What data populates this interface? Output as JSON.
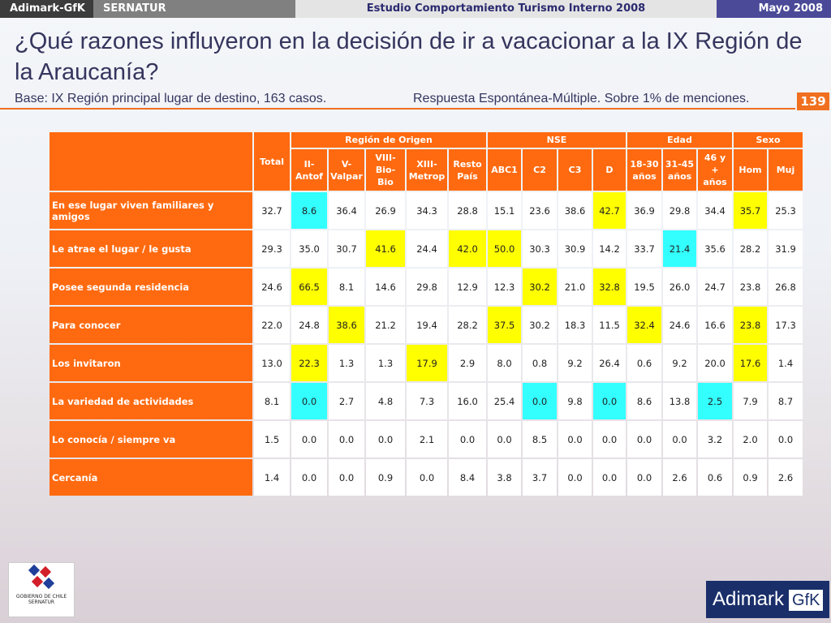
{
  "header": {
    "brand": "Adimark-GfK",
    "client": "SERNATUR",
    "study": "Estudio Comportamiento Turismo Interno 2008",
    "date": "Mayo 2008"
  },
  "title": "¿Qué razones influyeron en la decisión de ir a vacacionar a la IX Región de la Araucanía?",
  "base": "Base: IX Región principal lugar de destino, 163 casos.",
  "note": "Respuesta Espontánea-Múltiple. Sobre 1% de menciones.",
  "page_number": "139",
  "table": {
    "total_header": "Total",
    "groups": [
      {
        "name": "Región de Origen",
        "columns": [
          "II-\nAntof",
          "V-\nValpar",
          "VIII-\nBio-\nBio",
          "XIII-\nMetrop",
          "Resto\nPaís"
        ]
      },
      {
        "name": "NSE",
        "columns": [
          "ABC1",
          "C2",
          "C3",
          "D"
        ]
      },
      {
        "name": "Edad",
        "columns": [
          "18-30\naños",
          "31-45\naños",
          "46 y\n+\naños"
        ]
      },
      {
        "name": "Sexo",
        "columns": [
          "Hom",
          "Muj"
        ]
      }
    ],
    "rows": [
      {
        "label": "En ese lugar viven familiares y amigos",
        "cells": [
          "32.7",
          "8.6",
          "36.4",
          "26.9",
          "34.3",
          "28.8",
          "15.1",
          "23.6",
          "38.6",
          "42.7",
          "36.9",
          "29.8",
          "34.4",
          "35.7",
          "25.3"
        ],
        "highlight": [
          null,
          "#33ffff",
          null,
          null,
          null,
          null,
          null,
          null,
          null,
          "#ffff00",
          null,
          null,
          null,
          "#ffff00",
          null
        ]
      },
      {
        "label": "Le atrae el lugar / le gusta",
        "cells": [
          "29.3",
          "35.0",
          "30.7",
          "41.6",
          "24.4",
          "42.0",
          "50.0",
          "30.3",
          "30.9",
          "14.2",
          "33.7",
          "21.4",
          "35.6",
          "28.2",
          "31.9"
        ],
        "highlight": [
          null,
          null,
          null,
          "#ffff00",
          null,
          "#ffff00",
          "#ffff00",
          null,
          null,
          null,
          null,
          "#33ffff",
          null,
          null,
          null
        ]
      },
      {
        "label": "Posee segunda residencia",
        "cells": [
          "24.6",
          "66.5",
          "8.1",
          "14.6",
          "29.8",
          "12.9",
          "12.3",
          "30.2",
          "21.0",
          "32.8",
          "19.5",
          "26.0",
          "24.7",
          "23.8",
          "26.8"
        ],
        "highlight": [
          null,
          "#ffff00",
          null,
          null,
          null,
          null,
          null,
          "#ffff00",
          null,
          "#ffff00",
          null,
          null,
          null,
          null,
          null
        ]
      },
      {
        "label": "Para conocer",
        "cells": [
          "22.0",
          "24.8",
          "38.6",
          "21.2",
          "19.4",
          "28.2",
          "37.5",
          "30.2",
          "18.3",
          "11.5",
          "32.4",
          "24.6",
          "16.6",
          "23.8",
          "17.3"
        ],
        "highlight": [
          null,
          null,
          "#ffff00",
          null,
          null,
          null,
          "#ffff00",
          null,
          null,
          null,
          "#ffff00",
          null,
          null,
          "#ffff00",
          null
        ]
      },
      {
        "label": "Los invitaron",
        "cells": [
          "13.0",
          "22.3",
          "1.3",
          "1.3",
          "17.9",
          "2.9",
          "8.0",
          "0.8",
          "9.2",
          "26.4",
          "0.6",
          "9.2",
          "20.0",
          "17.6",
          "1.4"
        ],
        "highlight": [
          null,
          "#ffff00",
          null,
          null,
          "#ffff00",
          null,
          null,
          null,
          null,
          null,
          null,
          null,
          null,
          "#ffff00",
          null
        ]
      },
      {
        "label": "La variedad de actividades",
        "cells": [
          "8.1",
          "0.0",
          "2.7",
          "4.8",
          "7.3",
          "16.0",
          "25.4",
          "0.0",
          "9.8",
          "0.0",
          "8.6",
          "13.8",
          "2.5",
          "7.9",
          "8.7"
        ],
        "highlight": [
          null,
          "#33ffff",
          null,
          null,
          null,
          null,
          null,
          "#33ffff",
          null,
          "#33ffff",
          null,
          null,
          "#33ffff",
          null,
          null
        ]
      },
      {
        "label": "Lo conocía / siempre va",
        "cells": [
          "1.5",
          "0.0",
          "0.0",
          "0.0",
          "2.1",
          "0.0",
          "0.0",
          "8.5",
          "0.0",
          "0.0",
          "0.0",
          "0.0",
          "3.2",
          "2.0",
          "0.0"
        ],
        "highlight": [
          null,
          null,
          null,
          null,
          null,
          null,
          null,
          null,
          null,
          null,
          null,
          null,
          null,
          null,
          null
        ]
      },
      {
        "label": "Cercanía",
        "cells": [
          "1.4",
          "0.0",
          "0.0",
          "0.9",
          "0.0",
          "8.4",
          "3.8",
          "3.7",
          "0.0",
          "0.0",
          "0.0",
          "2.6",
          "0.6",
          "0.9",
          "2.6"
        ],
        "highlight": [
          null,
          null,
          null,
          null,
          null,
          null,
          null,
          null,
          null,
          null,
          null,
          null,
          null,
          null,
          null
        ]
      }
    ]
  },
  "footer": {
    "gov_logo": "GOBIERNO DE CHILE",
    "gov_sub": "SERNATUR",
    "company_logo": "Adimark",
    "company_logo_suffix": "GfK"
  }
}
